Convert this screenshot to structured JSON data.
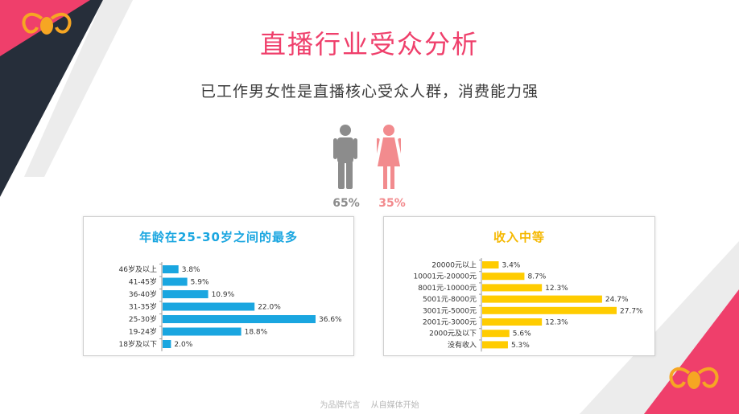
{
  "page": {
    "title": "直播行业受众分析",
    "subtitle": "已工作男女性是直播核心受众人群，消费能力强",
    "footer": [
      "为品牌代言",
      "从自媒体开始"
    ]
  },
  "gender": {
    "male_pct": "65%",
    "female_pct": "35%",
    "male_color": "#8c8c8c",
    "female_color": "#f28b8e"
  },
  "colors": {
    "accent": "#ef3f6b",
    "dark": "#262e3a",
    "age_bar": "#1aa6e0",
    "income_bar": "#ffcc00"
  },
  "chart_data": [
    {
      "type": "bar",
      "orientation": "horizontal",
      "title": "年龄在25-30岁之间的最多",
      "categories": [
        "46岁及以上",
        "41-45岁",
        "36-40岁",
        "31-35岁",
        "25-30岁",
        "19-24岁",
        "18岁及以下"
      ],
      "values": [
        3.8,
        5.9,
        10.9,
        22.0,
        36.6,
        18.8,
        2.0
      ],
      "value_labels": [
        "3.8%",
        "5.9%",
        "10.9%",
        "22.0%",
        "36.6%",
        "18.8%",
        "2.0%"
      ],
      "xlim": [
        0,
        36.6
      ],
      "grid": false
    },
    {
      "type": "bar",
      "orientation": "horizontal",
      "title": "收入中等",
      "categories": [
        "20000元以上",
        "10001元-20000元",
        "8001元-10000元",
        "5001元-8000元",
        "3001元-5000元",
        "2001元-3000元",
        "2000元及以下",
        "没有收入"
      ],
      "values": [
        3.4,
        8.7,
        12.3,
        24.7,
        27.7,
        12.3,
        5.6,
        5.3
      ],
      "value_labels": [
        "3.4%",
        "8.7%",
        "12.3%",
        "24.7%",
        "27.7%",
        "12.3%",
        "5.6%",
        "5.3%"
      ],
      "xlim": [
        0,
        27.7
      ],
      "grid": false
    }
  ]
}
